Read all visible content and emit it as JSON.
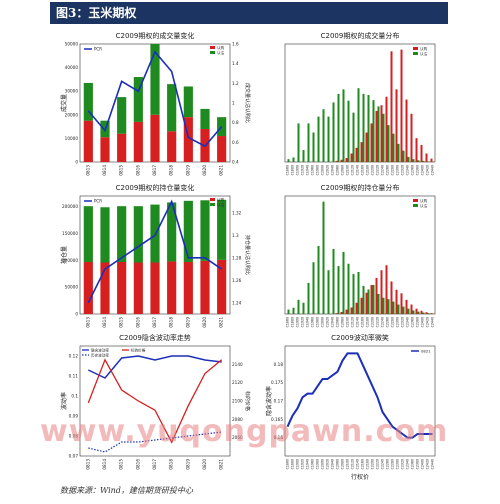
{
  "header": {
    "title": "图3：玉米期权"
  },
  "footer": {
    "source": "数据来源：Wind，建信期货研投中心"
  },
  "watermark": {
    "text": "www.yuqongpawn.com"
  },
  "colors": {
    "call": "#d62020",
    "put": "#1f8a1f",
    "line": "#1b2fb8",
    "dotted": "#1b2fb8"
  },
  "chart_data": [
    {
      "id": "volume",
      "type": "bar",
      "title": "C2009期权的成交量变化",
      "ylabel": "成交量",
      "y2label": "成交量认沽认购比",
      "categories": [
        "0813",
        "0814",
        "0815",
        "0816",
        "0817",
        "0818",
        "0819",
        "0820",
        "0821"
      ],
      "series": [
        {
          "name": "认购",
          "values": [
            17500,
            10500,
            12000,
            17000,
            20000,
            13000,
            19000,
            14000,
            11000
          ]
        },
        {
          "name": "认沽",
          "values": [
            16000,
            7000,
            15500,
            19000,
            30000,
            20000,
            13000,
            8500,
            8000
          ]
        },
        {
          "name": "PCR",
          "values": [
            0.92,
            0.72,
            1.22,
            1.12,
            1.52,
            1.32,
            0.65,
            0.56,
            0.76
          ]
        }
      ],
      "ylim": [
        0,
        50000
      ],
      "yticks": [
        0,
        10000,
        20000,
        30000,
        40000,
        50000
      ],
      "y2lim": [
        0.4,
        1.6
      ],
      "y2ticks": [
        0.4,
        0.6,
        0.8,
        1.0,
        1.2,
        1.4,
        1.6
      ],
      "legend": [
        "PCR",
        "认购",
        "认沽"
      ]
    },
    {
      "id": "volume_dist",
      "type": "bar",
      "title": "C2009期权的成交量分布",
      "categories": [
        "C1860",
        "C1880",
        "C1900",
        "C1920",
        "C1940",
        "C1960",
        "C1980",
        "C2000",
        "C2020",
        "C2040",
        "C2060",
        "C2080",
        "C2100",
        "C2120",
        "C2140",
        "C2160",
        "C2180",
        "C2200",
        "C2220",
        "C2240",
        "C2260",
        "C2280",
        "C2300",
        "C2320",
        "C2340",
        "C2360",
        "C2380",
        "C2400",
        "C2420",
        "C2440"
      ],
      "series": [
        {
          "name": "认购",
          "values": [
            0,
            0,
            0,
            0,
            0,
            0,
            0,
            0,
            0,
            0,
            200,
            400,
            700,
            1500,
            2500,
            3500,
            5200,
            6800,
            9000,
            10000,
            11500,
            19500,
            12800,
            19800,
            11000,
            8500,
            4200,
            3000,
            1500,
            600
          ]
        },
        {
          "name": "认沽",
          "values": [
            500,
            800,
            6800,
            2100,
            6800,
            5200,
            8000,
            9300,
            8000,
            10500,
            12000,
            12800,
            10800,
            8700,
            13000,
            12000,
            11800,
            10900,
            9800,
            8500,
            6500,
            5000,
            3200,
            2000,
            900,
            500,
            300,
            200,
            100,
            50
          ]
        }
      ],
      "legend": [
        "认购",
        "认沽"
      ]
    },
    {
      "id": "oi",
      "type": "bar",
      "title": "C2009期权的持仓量变化",
      "ylabel": "持仓量",
      "y2label": "持仓量认沽认购比",
      "categories": [
        "0813",
        "0814",
        "0815",
        "0816",
        "0817",
        "0818",
        "0819",
        "0820",
        "0821"
      ],
      "series": [
        {
          "name": "认购",
          "values": [
            97000,
            96000,
            97000,
            96000,
            96000,
            98000,
            97000,
            99000,
            101000
          ]
        },
        {
          "name": "认沽",
          "values": [
            104000,
            103000,
            104000,
            105000,
            108000,
            110000,
            114000,
            113000,
            112000
          ]
        },
        {
          "name": "PCR",
          "values": [
            1.24,
            1.27,
            1.28,
            1.29,
            1.3,
            1.33,
            1.28,
            1.28,
            1.27
          ]
        }
      ],
      "ylim": [
        0,
        220000
      ],
      "yticks": [
        0,
        50000,
        100000,
        150000,
        200000
      ],
      "y2lim": [
        1.23,
        1.335
      ],
      "y2ticks": [
        1.24,
        1.26,
        1.28,
        1.3,
        1.32
      ],
      "legend": [
        "PCR",
        "认购",
        "认沽"
      ]
    },
    {
      "id": "oi_dist",
      "type": "bar",
      "title": "C2009期权的持仓量分布",
      "categories": [
        "C1860",
        "C1880",
        "C1900",
        "C1920",
        "C1940",
        "C1960",
        "C1980",
        "C2000",
        "C2020",
        "C2040",
        "C2060",
        "C2080",
        "C2100",
        "C2120",
        "C2140",
        "C2160",
        "C2180",
        "C2200",
        "C2220",
        "C2240",
        "C2260",
        "C2280",
        "C2300",
        "C2320",
        "C2340",
        "C2360",
        "C2380",
        "C2400",
        "C2420",
        "C2440"
      ],
      "series": [
        {
          "name": "认购",
          "values": [
            0,
            0,
            0,
            0,
            0,
            0,
            0,
            0,
            0,
            0,
            300,
            700,
            1500,
            2200,
            3800,
            5500,
            7200,
            9800,
            12200,
            14800,
            16500,
            11000,
            8200,
            7000,
            4800,
            3200,
            1800,
            1100,
            600,
            300
          ]
        },
        {
          "name": "认沽",
          "values": [
            1500,
            2100,
            4800,
            3800,
            10500,
            17500,
            23000,
            38000,
            14800,
            22000,
            16200,
            21000,
            17000,
            13500,
            14200,
            9500,
            8300,
            9800,
            6800,
            5500,
            5000,
            4200,
            3200,
            2500,
            1800,
            1200,
            800,
            500,
            300,
            150
          ]
        }
      ],
      "legend": [
        "认购",
        "认沽"
      ]
    },
    {
      "id": "iv",
      "type": "line",
      "title": "C2009隐含波动率走势",
      "ylabel": "波动率",
      "y2label": "标的价格",
      "categories": [
        "0813",
        "0814",
        "0815",
        "0816",
        "0817",
        "0818",
        "0819",
        "0820",
        "0821"
      ],
      "series": [
        {
          "name": "隐含波动率",
          "values": [
            0.113,
            0.109,
            0.119,
            0.12,
            0.118,
            0.12,
            0.12,
            0.118,
            0.117
          ]
        },
        {
          "name": "标的价格",
          "values": [
            2098,
            2145,
            2112,
            2100,
            2090,
            2055,
            2095,
            2130,
            2145
          ]
        },
        {
          "name": "历史波动率",
          "values": [
            0.074,
            0.072,
            0.077,
            0.077,
            0.078,
            0.079,
            0.08,
            0.081,
            0.082
          ]
        }
      ],
      "ylim": [
        0.07,
        0.125
      ],
      "yticks": [
        0.07,
        0.08,
        0.09,
        0.1,
        0.11,
        0.12
      ],
      "legend": [
        "隐含波动率",
        "历史波动率",
        "标的价格"
      ]
    },
    {
      "id": "iv_smile",
      "type": "line",
      "title": "C2009波动率微笑",
      "ylabel": "隐含波动率",
      "xlabel": "行权价",
      "categories": [
        "C1860",
        "C1880",
        "C1900",
        "C1920",
        "C1940",
        "C1960",
        "C1980",
        "C2000",
        "C2020",
        "C2040",
        "C2060",
        "C2080",
        "C2100",
        "C2120",
        "C2140",
        "C2160",
        "C2180",
        "C2200",
        "C2220",
        "C2240",
        "C2260",
        "C2280",
        "C2300",
        "C2320",
        "C2340",
        "C2360",
        "C2380",
        "C2400",
        "C2420",
        "C2440"
      ],
      "series": [
        {
          "name": "0821",
          "values": [
            0.163,
            0.166,
            0.168,
            0.171,
            0.172,
            0.172,
            0.174,
            0.176,
            0.176,
            0.177,
            0.178,
            0.181,
            0.183,
            0.183,
            0.183,
            0.18,
            0.177,
            0.174,
            0.171,
            0.167,
            0.165,
            0.163,
            0.162,
            0.161,
            0.16,
            0.16,
            0.161,
            0.161,
            0.161,
            0.161
          ]
        }
      ],
      "ylim": [
        0.155,
        0.185
      ],
      "yticks": [
        0.16,
        0.165,
        0.17,
        0.175,
        0.18
      ],
      "legend": [
        "0821"
      ]
    }
  ]
}
